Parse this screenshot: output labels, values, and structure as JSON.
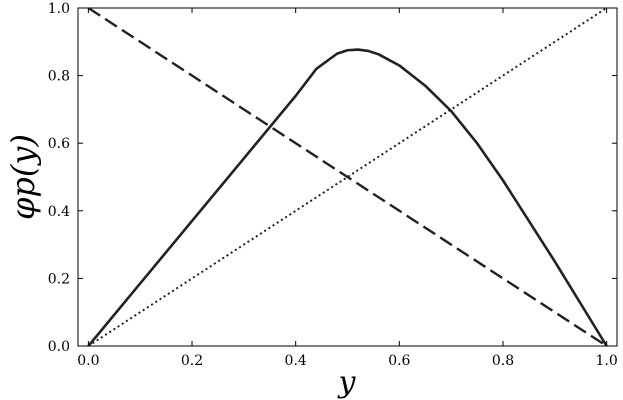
{
  "chart_data": {
    "type": "line",
    "xlabel": "y",
    "ylabel": "φp(y)",
    "xlim": [
      -0.02,
      1.02
    ],
    "ylim": [
      0.0,
      1.0
    ],
    "xticks": [
      "0.0",
      "0.2",
      "0.4",
      "0.6",
      "0.8",
      "1.0"
    ],
    "yticks": [
      "0.0",
      "0.2",
      "0.4",
      "0.6",
      "0.8",
      "1.0"
    ],
    "grid": false,
    "series": [
      {
        "style": "solid",
        "color": "#222222",
        "x": [
          0.0,
          0.1,
          0.2,
          0.3,
          0.4,
          0.44,
          0.48,
          0.5,
          0.52,
          0.54,
          0.56,
          0.6,
          0.65,
          0.7,
          0.75,
          0.8,
          0.85,
          0.9,
          0.95,
          1.0
        ],
        "y": [
          0.0,
          0.185,
          0.37,
          0.555,
          0.74,
          0.82,
          0.865,
          0.875,
          0.877,
          0.873,
          0.863,
          0.83,
          0.77,
          0.695,
          0.6,
          0.49,
          0.37,
          0.25,
          0.125,
          0.0
        ]
      },
      {
        "style": "dashed",
        "color": "#222222",
        "x": [
          0.0,
          1.0
        ],
        "y": [
          1.0,
          0.0
        ]
      },
      {
        "style": "dotted",
        "color": "#222222",
        "x": [
          0.0,
          1.0
        ],
        "y": [
          0.0,
          1.0
        ]
      }
    ]
  }
}
